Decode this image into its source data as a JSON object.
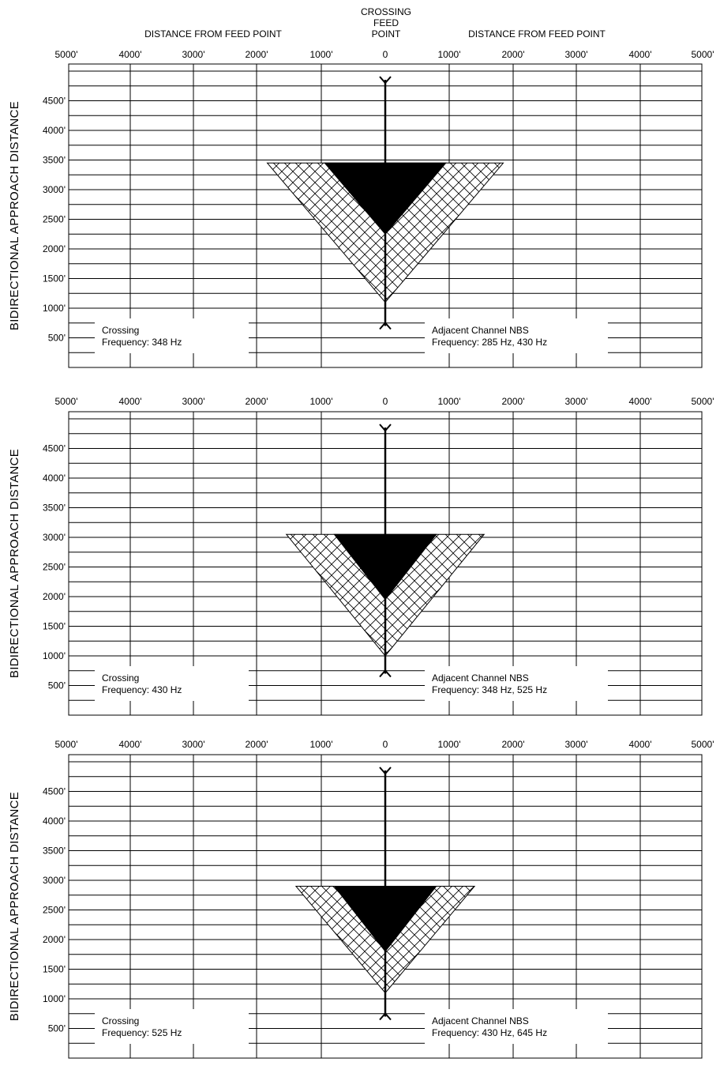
{
  "header": {
    "crossing_lines": [
      "CROSSING",
      "FEED",
      "POINT"
    ],
    "left_label": "DISTANCE FROM FEED POINT",
    "right_label": "DISTANCE FROM FEED POINT"
  },
  "x_tick_labels": [
    "5000'",
    "4000'",
    "3000'",
    "2000'",
    "1000'",
    "0",
    "1000'",
    "2000'",
    "3000'",
    "4000'",
    "5000'"
  ],
  "y_tick_labels": [
    "4500'",
    "4000'",
    "3500'",
    "3000'",
    "2500'",
    "2000'",
    "1500'",
    "1000'",
    "500'"
  ],
  "y_axis_label": "BIDIRECTIONAL APPROACH DISTANCE",
  "panels": [
    {
      "crossing_label": "Crossing",
      "crossing_frequency": "Frequency: 348 Hz",
      "adjacent_label": "Adjacent Channel NBS",
      "adjacent_frequency": "Frequency:  285 Hz, 430 Hz",
      "hatched_top_ft": 3450,
      "hatched_half_width_ft": 1850,
      "hatched_apex_ft": 1100,
      "solid_top_ft": 3450,
      "solid_half_width_ft": 950,
      "solid_apex_ft": 2250
    },
    {
      "crossing_label": "Crossing",
      "crossing_frequency": "Frequency: 430 Hz",
      "adjacent_label": "Adjacent Channel NBS",
      "adjacent_frequency": "Frequency:  348 Hz, 525 Hz",
      "hatched_top_ft": 3050,
      "hatched_half_width_ft": 1550,
      "hatched_apex_ft": 1000,
      "solid_top_ft": 3050,
      "solid_half_width_ft": 800,
      "solid_apex_ft": 1950
    },
    {
      "crossing_label": "Crossing",
      "crossing_frequency": "Frequency: 525 Hz",
      "adjacent_label": "Adjacent Channel NBS",
      "adjacent_frequency": "Frequency:  430 Hz, 645 Hz",
      "hatched_top_ft": 2900,
      "hatched_half_width_ft": 1400,
      "hatched_apex_ft": 1100,
      "solid_top_ft": 2900,
      "solid_half_width_ft": 800,
      "solid_apex_ft": 1800
    }
  ]
}
